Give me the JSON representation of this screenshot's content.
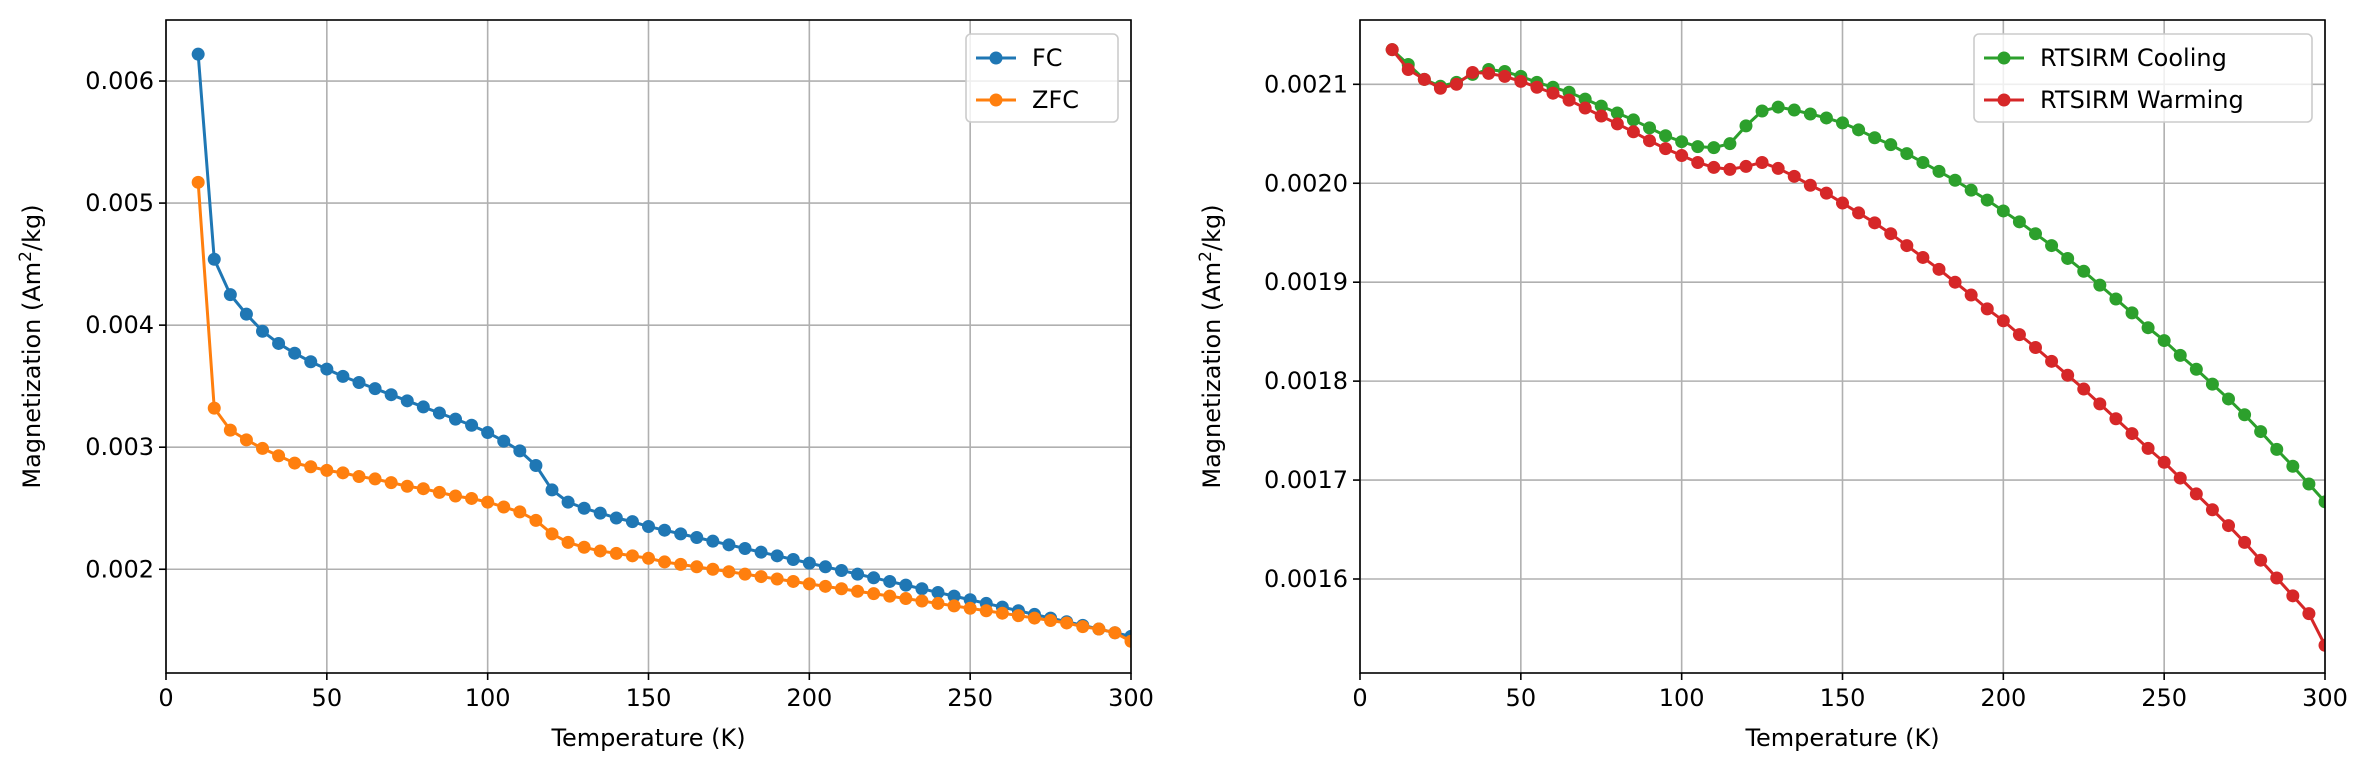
{
  "chart_data": [
    {
      "type": "line",
      "xlabel": "Temperature (K)",
      "ylabel": "Magnetization (Am²/kg)",
      "ylabel_parts": [
        "Magnetization (Am",
        "2",
        "/kg)"
      ],
      "xlim": [
        0,
        300
      ],
      "ylim": [
        0.00115,
        0.0065
      ],
      "xticks": [
        0,
        50,
        100,
        150,
        200,
        250,
        300
      ],
      "yticks": [
        0.002,
        0.003,
        0.004,
        0.005,
        0.006
      ],
      "ytick_labels": [
        "0.002",
        "0.003",
        "0.004",
        "0.005",
        "0.006"
      ],
      "grid": true,
      "legend": "top-right",
      "x": [
        10,
        15,
        20,
        25,
        30,
        35,
        40,
        45,
        50,
        55,
        60,
        65,
        70,
        75,
        80,
        85,
        90,
        95,
        100,
        105,
        110,
        115,
        120,
        125,
        130,
        135,
        140,
        145,
        150,
        155,
        160,
        165,
        170,
        175,
        180,
        185,
        190,
        195,
        200,
        205,
        210,
        215,
        220,
        225,
        230,
        235,
        240,
        245,
        250,
        255,
        260,
        265,
        270,
        275,
        280,
        285,
        290,
        295,
        300
      ],
      "series": [
        {
          "name": "FC",
          "color": "#1f77b4",
          "values": [
            0.00622,
            0.00454,
            0.00425,
            0.00409,
            0.00395,
            0.00385,
            0.00377,
            0.0037,
            0.00364,
            0.00358,
            0.00353,
            0.00348,
            0.00343,
            0.00338,
            0.00333,
            0.00328,
            0.00323,
            0.00318,
            0.00312,
            0.00305,
            0.00297,
            0.00285,
            0.00265,
            0.00255,
            0.0025,
            0.00246,
            0.00242,
            0.00239,
            0.00235,
            0.00232,
            0.00229,
            0.00226,
            0.00223,
            0.0022,
            0.00217,
            0.00214,
            0.00211,
            0.00208,
            0.00205,
            0.00202,
            0.00199,
            0.00196,
            0.00193,
            0.0019,
            0.00187,
            0.00184,
            0.00181,
            0.00178,
            0.00175,
            0.00172,
            0.00169,
            0.00166,
            0.00163,
            0.0016,
            0.00157,
            0.00154,
            0.00151,
            0.00148,
            0.00145
          ]
        },
        {
          "name": "ZFC",
          "color": "#ff7f0e",
          "values": [
            0.00517,
            0.00332,
            0.00314,
            0.00306,
            0.00299,
            0.00293,
            0.00287,
            0.00284,
            0.00281,
            0.00279,
            0.00276,
            0.00274,
            0.00271,
            0.00268,
            0.00266,
            0.00263,
            0.0026,
            0.00258,
            0.00255,
            0.00251,
            0.00247,
            0.0024,
            0.00229,
            0.00222,
            0.00218,
            0.00215,
            0.00213,
            0.00211,
            0.00209,
            0.00206,
            0.00204,
            0.00202,
            0.002,
            0.00198,
            0.00196,
            0.00194,
            0.00192,
            0.0019,
            0.00188,
            0.00186,
            0.00184,
            0.00182,
            0.0018,
            0.00178,
            0.00176,
            0.00174,
            0.00172,
            0.0017,
            0.00168,
            0.00166,
            0.00164,
            0.00162,
            0.0016,
            0.00158,
            0.00156,
            0.00153,
            0.00151,
            0.00148,
            0.00141
          ]
        }
      ]
    },
    {
      "type": "line",
      "xlabel": "Temperature (K)",
      "ylabel": "Magnetization (Am²/kg)",
      "ylabel_parts": [
        "Magnetization (Am",
        "2",
        "/kg)"
      ],
      "xlim": [
        0,
        300
      ],
      "ylim": [
        0.001505,
        0.002165
      ],
      "xticks": [
        0,
        50,
        100,
        150,
        200,
        250,
        300
      ],
      "yticks": [
        0.0016,
        0.0017,
        0.0018,
        0.0019,
        0.002,
        0.0021
      ],
      "ytick_labels": [
        "0.0016",
        "0.0017",
        "0.0018",
        "0.0019",
        "0.0020",
        "0.0021"
      ],
      "grid": true,
      "legend": "top-right",
      "x": [
        10,
        15,
        20,
        25,
        30,
        35,
        40,
        45,
        50,
        55,
        60,
        65,
        70,
        75,
        80,
        85,
        90,
        95,
        100,
        105,
        110,
        115,
        120,
        125,
        130,
        135,
        140,
        145,
        150,
        155,
        160,
        165,
        170,
        175,
        180,
        185,
        190,
        195,
        200,
        205,
        210,
        215,
        220,
        225,
        230,
        235,
        240,
        245,
        250,
        255,
        260,
        265,
        270,
        275,
        280,
        285,
        290,
        295,
        300
      ],
      "series": [
        {
          "name": "RTSIRM Cooling",
          "color": "#2ca02c",
          "values": [
            0.002135,
            0.00212,
            0.002105,
            0.002098,
            0.002102,
            0.00211,
            0.002115,
            0.002113,
            0.002108,
            0.002102,
            0.002097,
            0.002092,
            0.002085,
            0.002078,
            0.002071,
            0.002064,
            0.002056,
            0.002048,
            0.002042,
            0.002037,
            0.002036,
            0.00204,
            0.002058,
            0.002073,
            0.002077,
            0.002074,
            0.00207,
            0.002066,
            0.002061,
            0.002054,
            0.002046,
            0.002039,
            0.00203,
            0.002021,
            0.002012,
            0.002003,
            0.001993,
            0.001983,
            0.001972,
            0.001961,
            0.001949,
            0.001937,
            0.001924,
            0.001911,
            0.001897,
            0.001883,
            0.001869,
            0.001854,
            0.001841,
            0.001826,
            0.001812,
            0.001797,
            0.001782,
            0.001766,
            0.001749,
            0.001731,
            0.001714,
            0.001696,
            0.001678
          ]
        },
        {
          "name": "RTSIRM Warming",
          "color": "#d62728",
          "values": [
            0.002135,
            0.002115,
            0.002105,
            0.002096,
            0.0021,
            0.002112,
            0.002111,
            0.002108,
            0.002103,
            0.002097,
            0.002091,
            0.002084,
            0.002076,
            0.002068,
            0.00206,
            0.002052,
            0.002043,
            0.002035,
            0.002028,
            0.002021,
            0.002016,
            0.002014,
            0.002017,
            0.002021,
            0.002015,
            0.002007,
            0.001998,
            0.00199,
            0.00198,
            0.00197,
            0.00196,
            0.001949,
            0.001937,
            0.001925,
            0.001913,
            0.0019,
            0.001887,
            0.001873,
            0.001861,
            0.001847,
            0.001834,
            0.00182,
            0.001806,
            0.001792,
            0.001777,
            0.001762,
            0.001747,
            0.001732,
            0.001718,
            0.001702,
            0.001686,
            0.00167,
            0.001654,
            0.001637,
            0.001619,
            0.001601,
            0.001583,
            0.001565,
            0.001533
          ]
        }
      ]
    }
  ]
}
